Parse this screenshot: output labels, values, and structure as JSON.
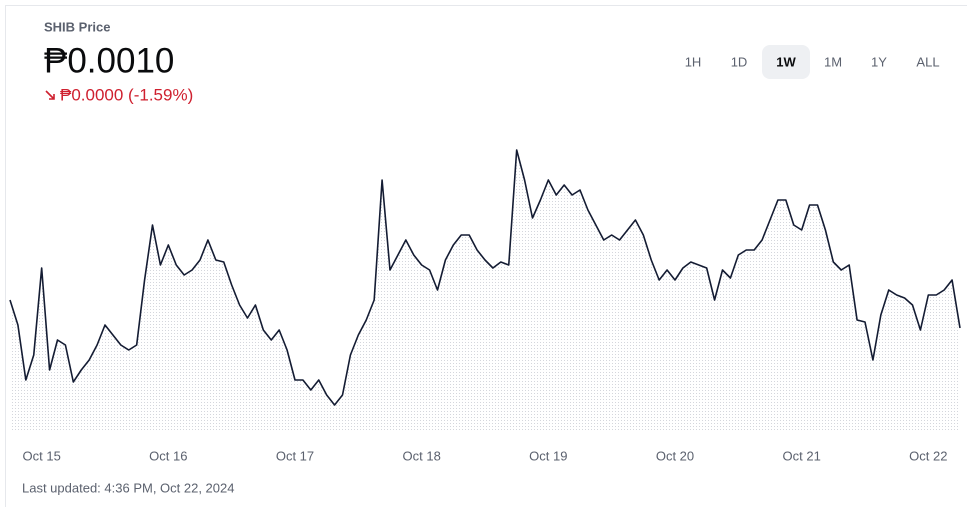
{
  "chart_data": {
    "type": "line",
    "title": "SHIB Price",
    "price": "₱0.0010",
    "change": "₱0.0000 (-1.59%)",
    "ranges": [
      "1H",
      "1D",
      "1W",
      "1M",
      "1Y",
      "ALL"
    ],
    "selected_range": 2,
    "footer": "Last updated: 4:36 PM, Oct 22, 2024",
    "color": "#141c33",
    "change_color": "#cf202f",
    "categories": [
      null,
      null,
      null,
      null,
      "Oct 15",
      null,
      null,
      null,
      null,
      null,
      null,
      null,
      null,
      null,
      null,
      null,
      null,
      null,
      null,
      null,
      "Oct 16",
      null,
      null,
      null,
      null,
      null,
      null,
      null,
      null,
      null,
      null,
      null,
      null,
      null,
      null,
      null,
      "Oct 17",
      null,
      null,
      null,
      null,
      null,
      null,
      null,
      null,
      null,
      null,
      null,
      null,
      null,
      null,
      null,
      "Oct 18",
      null,
      null,
      null,
      null,
      null,
      null,
      null,
      null,
      null,
      null,
      null,
      null,
      null,
      null,
      null,
      "Oct 19",
      null,
      null,
      null,
      null,
      null,
      null,
      null,
      null,
      null,
      null,
      null,
      null,
      null,
      null,
      null,
      "Oct 20",
      null,
      null,
      null,
      null,
      null,
      null,
      null,
      null,
      null,
      null,
      null,
      null,
      null,
      null,
      null,
      "Oct 21",
      null,
      null,
      null,
      null,
      null,
      null,
      null,
      null,
      null,
      null,
      null,
      null,
      null,
      null,
      null,
      "Oct 22",
      null,
      null,
      null,
      null
    ],
    "values": [
      0.000996,
      0.000986,
      0.000964,
      0.000974,
      0.0010088,
      0.000968,
      0.00098,
      0.000978,
      0.0009632,
      0.000968,
      0.000972,
      0.000978,
      0.000986,
      0.000982,
      0.000978,
      0.000976,
      0.000978,
      0.001004,
      0.001026,
      0.00101,
      0.001018,
      0.00101,
      0.001006,
      0.001008,
      0.001012,
      0.00102,
      0.001012,
      0.0010112,
      0.001002,
      0.000994,
      0.0009888,
      0.000994,
      0.000984,
      0.00098,
      0.000984,
      0.000976,
      0.000964,
      0.000964,
      0.00096,
      0.000964,
      0.000958,
      0.000954,
      0.000958,
      0.000974,
      0.000982,
      0.000988,
      0.000996,
      0.001044,
      0.001008,
      0.001014,
      0.00102,
      0.001014,
      0.00101,
      0.001008,
      0.001,
      0.001012,
      0.001018,
      0.001022,
      0.001022,
      0.001016,
      0.001012,
      0.0010088,
      0.0010112,
      0.00101,
      0.001056,
      0.001044,
      0.0010288,
      0.001036,
      0.001044,
      0.001038,
      0.001042,
      0.001038,
      0.00104,
      0.001032,
      0.001026,
      0.00102,
      0.001022,
      0.00102,
      0.001024,
      0.001028,
      0.001022,
      0.001012,
      0.001004,
      0.001008,
      0.001004,
      0.0010088,
      0.0010112,
      0.00101,
      0.0010088,
      0.000996,
      0.001008,
      0.0010048,
      0.001014,
      0.001016,
      0.001016,
      0.00102,
      0.001028,
      0.001036,
      0.001036,
      0.001026,
      0.001024,
      0.001034,
      0.001034,
      0.001024,
      0.0010112,
      0.001008,
      0.00101,
      0.000988,
      0.0009872,
      0.000972,
      0.00099,
      0.001,
      0.000998,
      0.0009968,
      0.000994,
      0.000984,
      0.000998,
      0.000998,
      0.001,
      0.001004,
      0.0009848
    ],
    "ylim": [
      0.0009432,
      0.00106
    ]
  }
}
